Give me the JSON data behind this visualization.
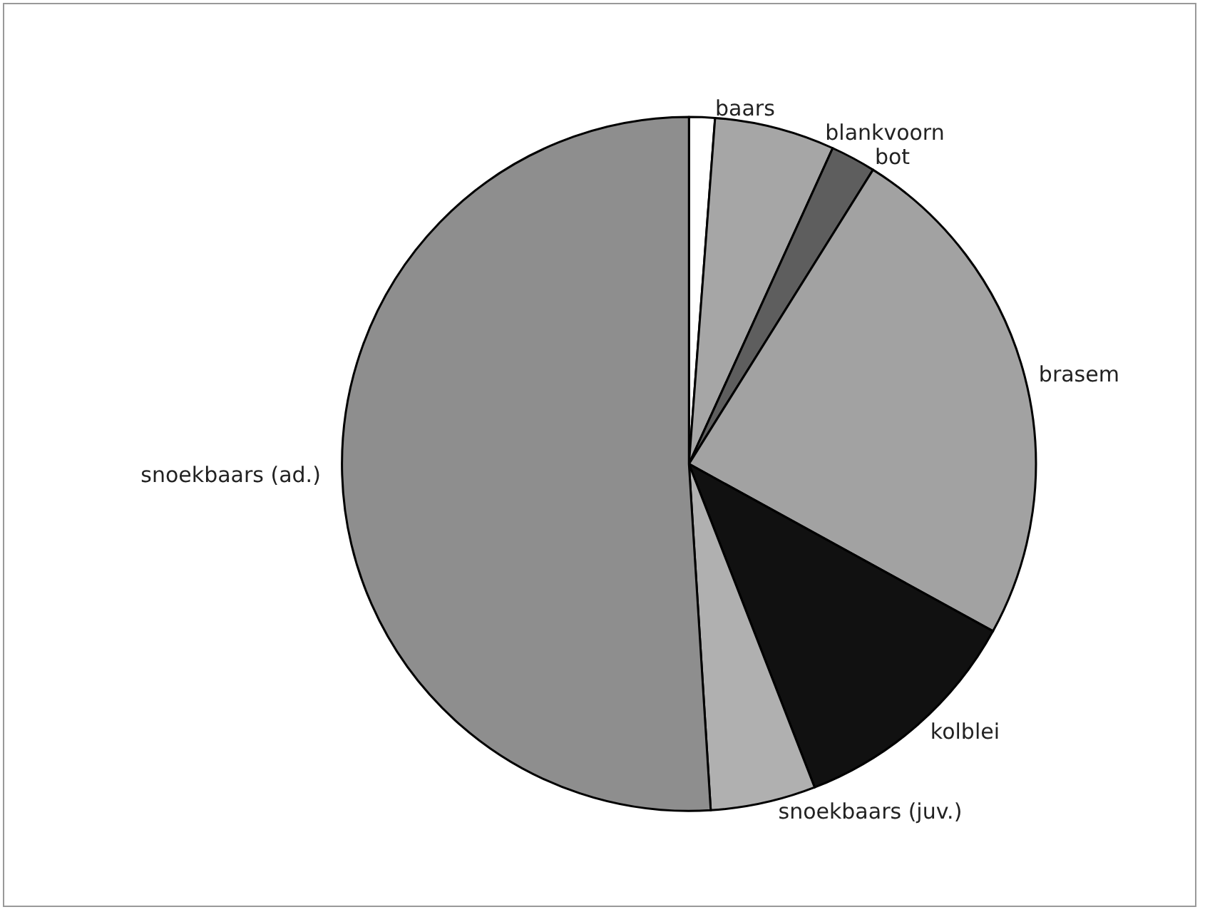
{
  "chart_data": {
    "type": "pie",
    "categories": [
      "baars",
      "blankvoorn",
      "bot",
      "brasem",
      "kolblei",
      "snoekbaars (juv.)",
      "snoekbaars (ad.)"
    ],
    "values": [
      1.2,
      5.6,
      2.1,
      24.1,
      11.1,
      4.9,
      51.0
    ],
    "colors": [
      "#ffffff",
      "#a6a6a6",
      "#5e5e5e",
      "#a2a2a2",
      "#111111",
      "#b0b0b0",
      "#8e8e8e"
    ]
  }
}
